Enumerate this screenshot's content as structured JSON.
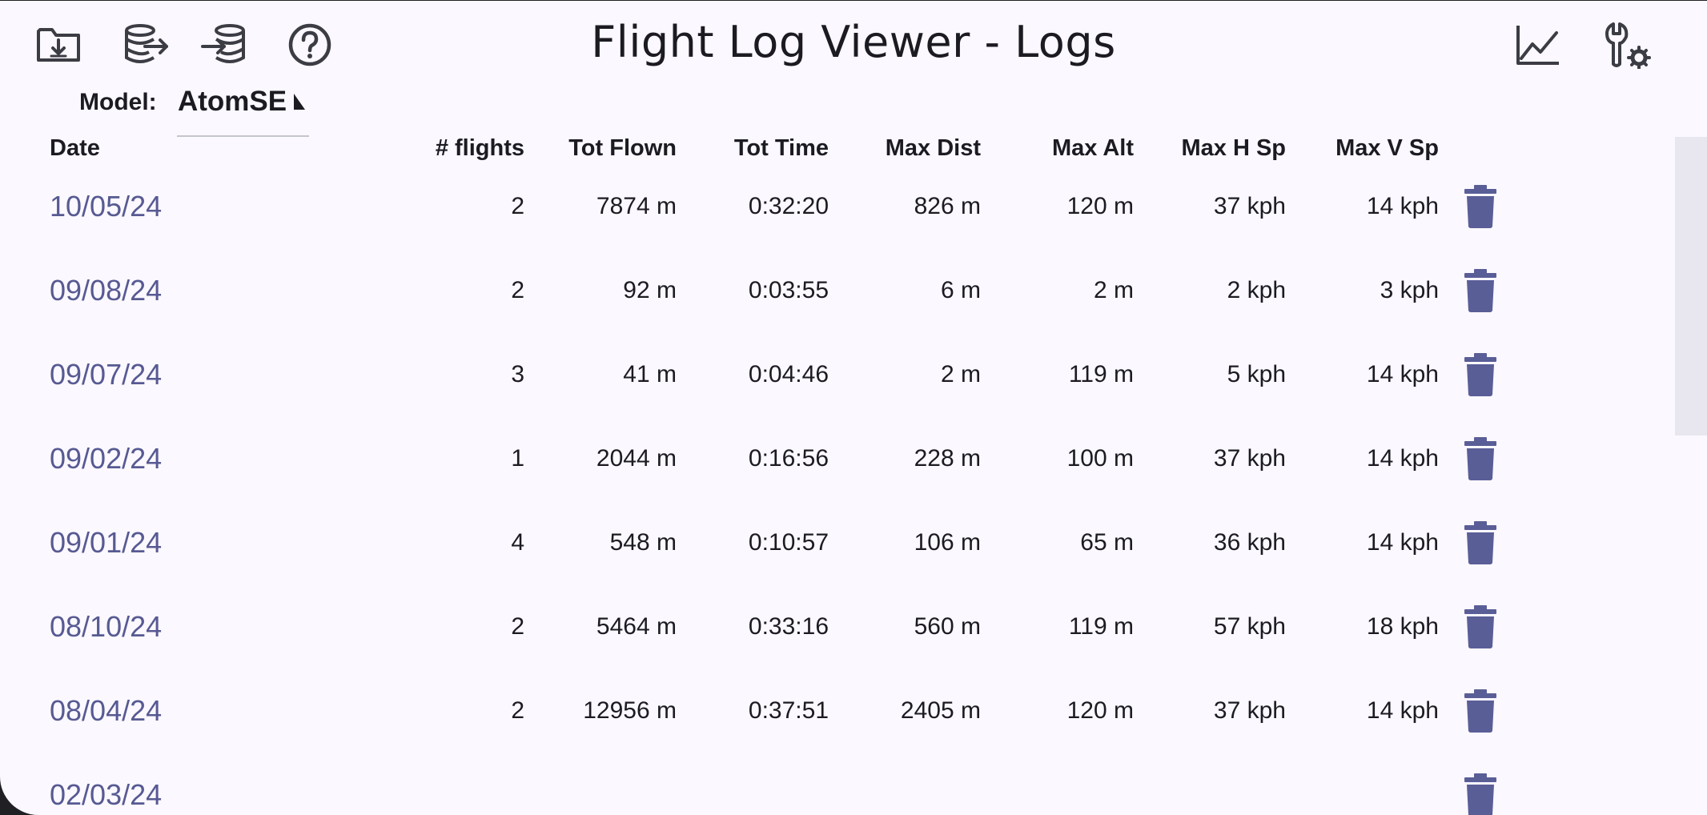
{
  "header": {
    "title": "Flight Log Viewer - Logs"
  },
  "model": {
    "label": "Model:",
    "value": "AtomSE"
  },
  "table": {
    "columns": [
      "Date",
      "# flights",
      "Tot Flown",
      "Tot Time",
      "Max Dist",
      "Max Alt",
      "Max H Sp",
      "Max V Sp"
    ],
    "rows": [
      {
        "date": "10/05/24",
        "flights": "2",
        "tot_flown": "7874 m",
        "tot_time": "0:32:20",
        "max_dist": "826 m",
        "max_alt": "120 m",
        "max_h_sp": "37 kph",
        "max_v_sp": "14 kph"
      },
      {
        "date": "09/08/24",
        "flights": "2",
        "tot_flown": "92 m",
        "tot_time": "0:03:55",
        "max_dist": "6 m",
        "max_alt": "2 m",
        "max_h_sp": "2 kph",
        "max_v_sp": "3 kph"
      },
      {
        "date": "09/07/24",
        "flights": "3",
        "tot_flown": "41 m",
        "tot_time": "0:04:46",
        "max_dist": "2 m",
        "max_alt": "119 m",
        "max_h_sp": "5 kph",
        "max_v_sp": "14 kph"
      },
      {
        "date": "09/02/24",
        "flights": "1",
        "tot_flown": "2044 m",
        "tot_time": "0:16:56",
        "max_dist": "228 m",
        "max_alt": "100 m",
        "max_h_sp": "37 kph",
        "max_v_sp": "14 kph"
      },
      {
        "date": "09/01/24",
        "flights": "4",
        "tot_flown": "548 m",
        "tot_time": "0:10:57",
        "max_dist": "106 m",
        "max_alt": "65 m",
        "max_h_sp": "36 kph",
        "max_v_sp": "14 kph"
      },
      {
        "date": "08/10/24",
        "flights": "2",
        "tot_flown": "5464 m",
        "tot_time": "0:33:16",
        "max_dist": "560 m",
        "max_alt": "119 m",
        "max_h_sp": "57 kph",
        "max_v_sp": "18 kph"
      },
      {
        "date": "08/04/24",
        "flights": "2",
        "tot_flown": "12956 m",
        "tot_time": "0:37:51",
        "max_dist": "2405 m",
        "max_alt": "120 m",
        "max_h_sp": "37 kph",
        "max_v_sp": "14 kph"
      },
      {
        "date": "02/03/24",
        "flights": "",
        "tot_flown": "",
        "tot_time": "",
        "max_dist": "",
        "max_alt": "",
        "max_h_sp": "",
        "max_v_sp": ""
      }
    ]
  },
  "icons": {
    "toolbar_left": [
      "folder-download-icon",
      "database-export-icon",
      "database-import-icon",
      "help-circle-icon"
    ],
    "toolbar_right": [
      "line-chart-icon",
      "wrench-settings-icon"
    ],
    "row_action": "trash-icon"
  },
  "colors": {
    "background": "#fbf8ff",
    "text": "#1b1b21",
    "link": "#575a92",
    "trash": "#5a5e97",
    "icon": "#3c3c44",
    "scroll_thumb": "#e8e6ef"
  }
}
